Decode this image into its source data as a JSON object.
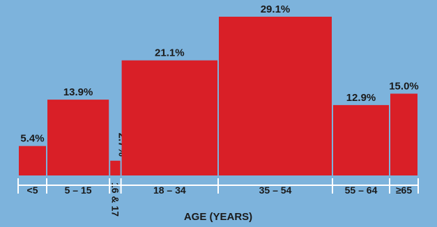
{
  "chart_data": {
    "type": "bar",
    "title": "",
    "xlabel": "AGE (YEARS)",
    "ylabel": "",
    "categories": [
      "<5",
      "5 – 15",
      "16 & 17",
      "18 – 34",
      "35 – 54",
      "55 – 64",
      "≥65"
    ],
    "values": [
      5.4,
      13.9,
      2.7,
      21.1,
      29.1,
      12.9,
      15.0
    ],
    "value_labels": [
      "5.4%",
      "13.9%",
      "2.7%",
      "21.1%",
      "29.1%",
      "12.9%",
      "15.0%"
    ],
    "bar_widths_years": [
      5,
      11,
      2,
      17,
      20,
      10,
      5
    ],
    "ylim": [
      0,
      29.1
    ],
    "grid": false,
    "legend": "none",
    "colors": {
      "bar": "#d91f27",
      "background": "#7db3dc",
      "axis": "#ffffff",
      "text": "#1a1a1a"
    }
  }
}
